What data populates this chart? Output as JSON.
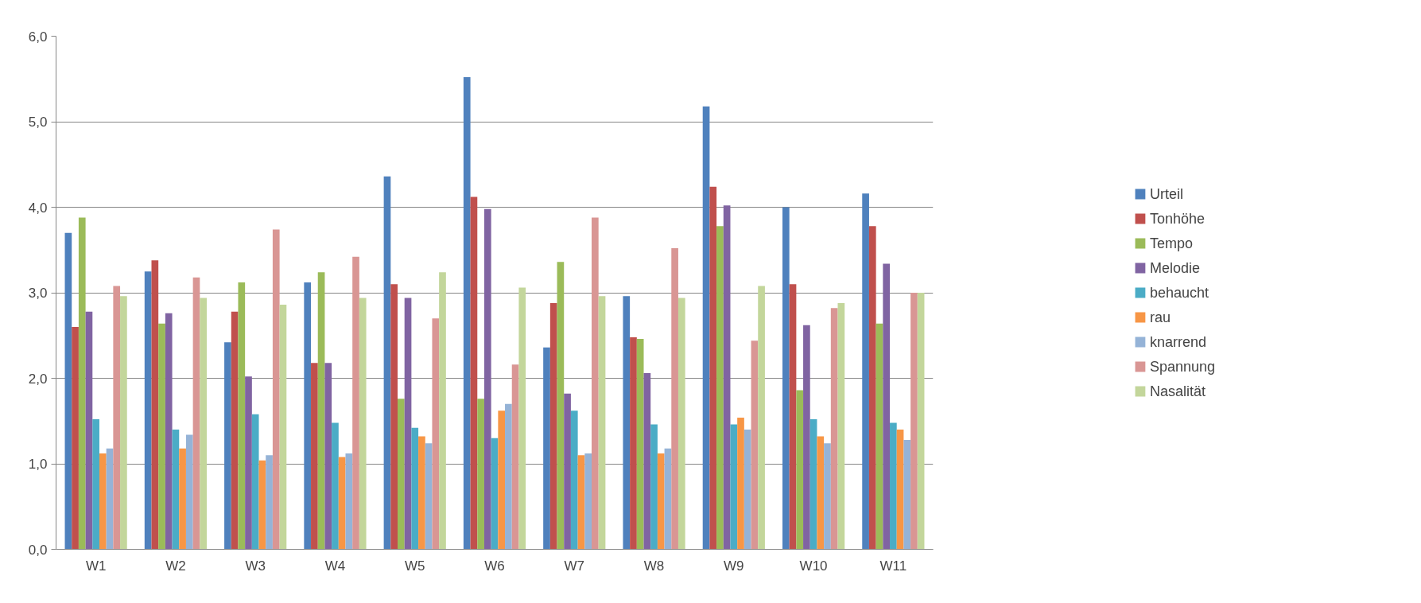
{
  "chart_data": {
    "type": "bar",
    "categories": [
      "W1",
      "W2",
      "W3",
      "W4",
      "W5",
      "W6",
      "W7",
      "W8",
      "W9",
      "W10",
      "W11"
    ],
    "series": [
      {
        "name": "Urteil",
        "color": "#4f81bd",
        "values": [
          3.7,
          3.25,
          2.42,
          3.12,
          4.36,
          5.52,
          2.36,
          2.96,
          5.18,
          4.0,
          4.16
        ]
      },
      {
        "name": "Tonhöhe",
        "color": "#c0504d",
        "values": [
          2.6,
          3.38,
          2.78,
          2.18,
          3.1,
          4.12,
          2.88,
          2.48,
          4.24,
          3.1,
          3.78
        ]
      },
      {
        "name": "Tempo",
        "color": "#9bbb59",
        "values": [
          3.88,
          2.64,
          3.12,
          3.24,
          1.76,
          1.76,
          3.36,
          2.46,
          3.78,
          1.86,
          2.64
        ]
      },
      {
        "name": "Melodie",
        "color": "#8064a2",
        "values": [
          2.78,
          2.76,
          2.02,
          2.18,
          2.94,
          3.98,
          1.82,
          2.06,
          4.02,
          2.62,
          3.34
        ]
      },
      {
        "name": "behaucht",
        "color": "#4bacc6",
        "values": [
          1.52,
          1.4,
          1.58,
          1.48,
          1.42,
          1.3,
          1.62,
          1.46,
          1.46,
          1.52,
          1.48
        ]
      },
      {
        "name": "rau",
        "color": "#f79646",
        "values": [
          1.12,
          1.18,
          1.04,
          1.08,
          1.32,
          1.62,
          1.1,
          1.12,
          1.54,
          1.32,
          1.4
        ]
      },
      {
        "name": "knarrend",
        "color": "#95b3d7",
        "values": [
          1.18,
          1.34,
          1.1,
          1.12,
          1.24,
          1.7,
          1.12,
          1.18,
          1.4,
          1.24,
          1.28
        ]
      },
      {
        "name": "Spannung",
        "color": "#d99694",
        "values": [
          3.08,
          3.18,
          3.74,
          3.42,
          2.7,
          2.16,
          3.88,
          3.52,
          2.44,
          2.82,
          3.0
        ]
      },
      {
        "name": "Nasalität",
        "color": "#c3d69b",
        "values": [
          2.96,
          2.94,
          2.86,
          2.94,
          3.24,
          3.06,
          2.96,
          2.94,
          3.08,
          2.88,
          3.0
        ]
      }
    ],
    "ylim": [
      0,
      6
    ],
    "yticks": [
      {
        "value": 0,
        "label": "0,0"
      },
      {
        "value": 1,
        "label": "1,0"
      },
      {
        "value": 2,
        "label": "2,0"
      },
      {
        "value": 3,
        "label": "3,0"
      },
      {
        "value": 4,
        "label": "4,0"
      },
      {
        "value": 5,
        "label": "5,0"
      },
      {
        "value": 6,
        "label": "6,0"
      }
    ],
    "grid": "y",
    "legend": "right"
  }
}
